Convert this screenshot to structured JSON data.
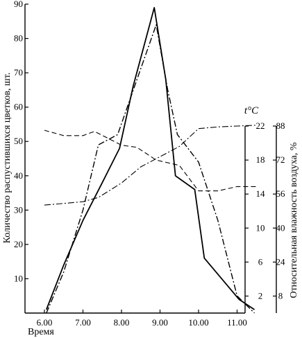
{
  "colors": {
    "foreground": "#000000",
    "background": "#ffffff"
  },
  "chart_data": {
    "type": "line",
    "xlabel": "Время",
    "x_ticks": [
      "6.00",
      "7.00",
      "8.00",
      "9.00",
      "10.00",
      "11.00"
    ],
    "x_tick_values": [
      6.0,
      7.0,
      8.0,
      9.0,
      10.0,
      11.0
    ],
    "xlim": [
      5.8,
      11.5
    ],
    "axes": {
      "left": {
        "label": "Количество распустившихся цветков, шт.",
        "ticks": [
          10,
          20,
          30,
          40,
          50,
          60,
          70,
          80,
          90
        ],
        "ylim": [
          0,
          90
        ]
      },
      "temp": {
        "label": "t°C",
        "ticks": [
          2,
          6,
          10,
          14,
          18,
          22
        ],
        "ylim": [
          0,
          22
        ]
      },
      "humidity": {
        "label": "Относительная влажность воздуха, %",
        "ticks": [
          8,
          24,
          40,
          56,
          72,
          88
        ],
        "ylim": [
          0,
          88
        ]
      }
    },
    "series": [
      {
        "axis": "left",
        "style": "solid",
        "width": 1.8,
        "x": [
          6.05,
          6.5,
          7.0,
          7.5,
          7.95,
          8.3,
          8.85,
          9.15,
          9.4,
          9.9,
          10.15,
          10.6,
          11.05,
          11.45
        ],
        "y": [
          1,
          14,
          27,
          38,
          48,
          66,
          89,
          68,
          40,
          36,
          16,
          10,
          4,
          1
        ]
      },
      {
        "axis": "left",
        "style": "dash-dot",
        "width": 1.4,
        "x": [
          6.05,
          6.5,
          7.0,
          7.4,
          7.9,
          8.4,
          8.9,
          9.2,
          9.45,
          10.0,
          10.5,
          11.0,
          11.45
        ],
        "y": [
          0,
          12,
          30,
          49,
          52,
          68,
          84,
          65,
          52,
          44,
          27,
          5,
          0
        ]
      },
      {
        "axis": "temp",
        "style": "dash-dot",
        "width": 1.1,
        "x": [
          6.0,
          6.5,
          7.0,
          7.4,
          8.0,
          8.5,
          9.0,
          9.5,
          10.0,
          10.5,
          11.0,
          11.5
        ],
        "y": [
          12.7,
          12.9,
          13.1,
          13.6,
          15.3,
          17.2,
          18.4,
          19.6,
          21.7,
          21.9,
          22.0,
          22.1
        ]
      },
      {
        "axis": "humidity",
        "style": "dashed",
        "width": 1.1,
        "x": [
          6.0,
          6.5,
          7.0,
          7.3,
          8.0,
          8.4,
          8.9,
          9.5,
          10.0,
          10.5,
          11.0,
          11.5
        ],
        "y": [
          86,
          83.5,
          83.5,
          85.5,
          79,
          78,
          72,
          69.5,
          57.5,
          57.5,
          59.5,
          59.5
        ]
      }
    ]
  }
}
